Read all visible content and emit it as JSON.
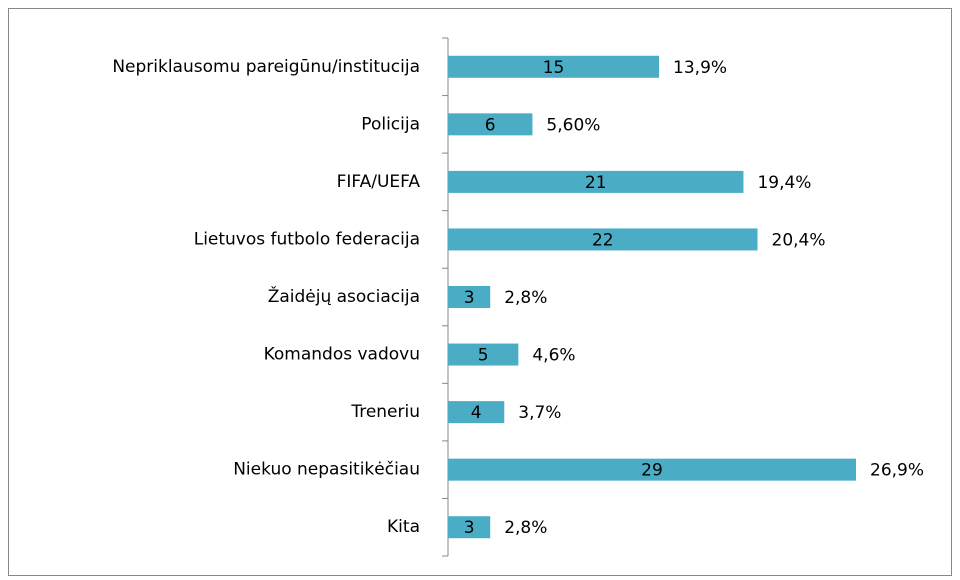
{
  "chart_data": {
    "type": "bar",
    "orientation": "horizontal",
    "categories": [
      "Nepriklausomu pareigūnu/institucija",
      "Policija",
      "FIFA/UEFA",
      "Lietuvos futbolo federacija",
      "Žaidėjų asociacija",
      "Komandos vadovu",
      "Treneriu",
      "Niekuo nepasitikėčiau",
      "Kita"
    ],
    "values": [
      15,
      6,
      21,
      22,
      3,
      5,
      4,
      29,
      3
    ],
    "shares": [
      13.9,
      5.6,
      19.4,
      20.4,
      2.8,
      4.6,
      3.7,
      26.9,
      2.8
    ],
    "share_labels": [
      "13,9%",
      "5,60%",
      "19,4%",
      "20,4%",
      "2,8%",
      "4,6%",
      "3,7%",
      "26,9%",
      "2,8%"
    ],
    "color": "#4bacc6"
  }
}
